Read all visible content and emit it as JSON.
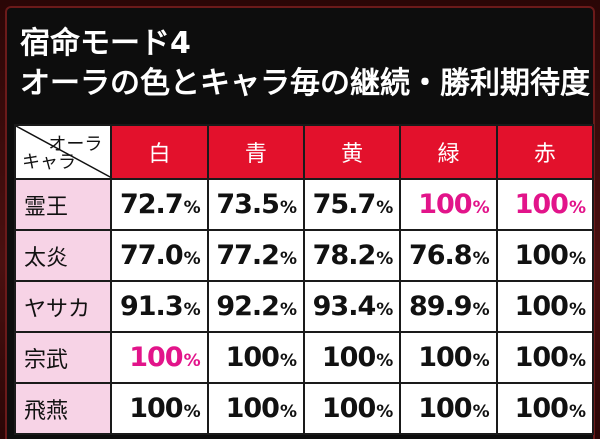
{
  "title": {
    "line1": "宿命モード4",
    "line2": "オーラの色とキャラ毎の継続・勝利期待度"
  },
  "table": {
    "corner_top": "オーラ",
    "corner_bottom": "キャラ",
    "columns": [
      "白",
      "青",
      "黄",
      "緑",
      "赤"
    ],
    "rows": [
      {
        "label": "霊王",
        "cells": [
          {
            "value": "72.7",
            "unit": "%",
            "highlight": false
          },
          {
            "value": "73.5",
            "unit": "%",
            "highlight": false
          },
          {
            "value": "75.7",
            "unit": "%",
            "highlight": false
          },
          {
            "value": "100",
            "unit": "%",
            "highlight": true
          },
          {
            "value": "100",
            "unit": "%",
            "highlight": true
          }
        ]
      },
      {
        "label": "太炎",
        "cells": [
          {
            "value": "77.0",
            "unit": "%",
            "highlight": false
          },
          {
            "value": "77.2",
            "unit": "%",
            "highlight": false
          },
          {
            "value": "78.2",
            "unit": "%",
            "highlight": false
          },
          {
            "value": "76.8",
            "unit": "%",
            "highlight": false
          },
          {
            "value": "100",
            "unit": "%",
            "highlight": false
          }
        ]
      },
      {
        "label": "ヤサカ",
        "cells": [
          {
            "value": "91.3",
            "unit": "%",
            "highlight": false
          },
          {
            "value": "92.2",
            "unit": "%",
            "highlight": false
          },
          {
            "value": "93.4",
            "unit": "%",
            "highlight": false
          },
          {
            "value": "89.9",
            "unit": "%",
            "highlight": false
          },
          {
            "value": "100",
            "unit": "%",
            "highlight": false
          }
        ]
      },
      {
        "label": "宗武",
        "cells": [
          {
            "value": "100",
            "unit": "%",
            "highlight": true
          },
          {
            "value": "100",
            "unit": "%",
            "highlight": false
          },
          {
            "value": "100",
            "unit": "%",
            "highlight": false
          },
          {
            "value": "100",
            "unit": "%",
            "highlight": false
          },
          {
            "value": "100",
            "unit": "%",
            "highlight": false
          }
        ]
      },
      {
        "label": "飛燕",
        "cells": [
          {
            "value": "100",
            "unit": "%",
            "highlight": false
          },
          {
            "value": "100",
            "unit": "%",
            "highlight": false
          },
          {
            "value": "100",
            "unit": "%",
            "highlight": false
          },
          {
            "value": "100",
            "unit": "%",
            "highlight": false
          },
          {
            "value": "100",
            "unit": "%",
            "highlight": false
          }
        ]
      }
    ]
  },
  "colors": {
    "header_red": "#e3112c",
    "row_pink": "#f7d3e6",
    "highlight_magenta": "#e2148a",
    "background": "#0d0d0d"
  }
}
